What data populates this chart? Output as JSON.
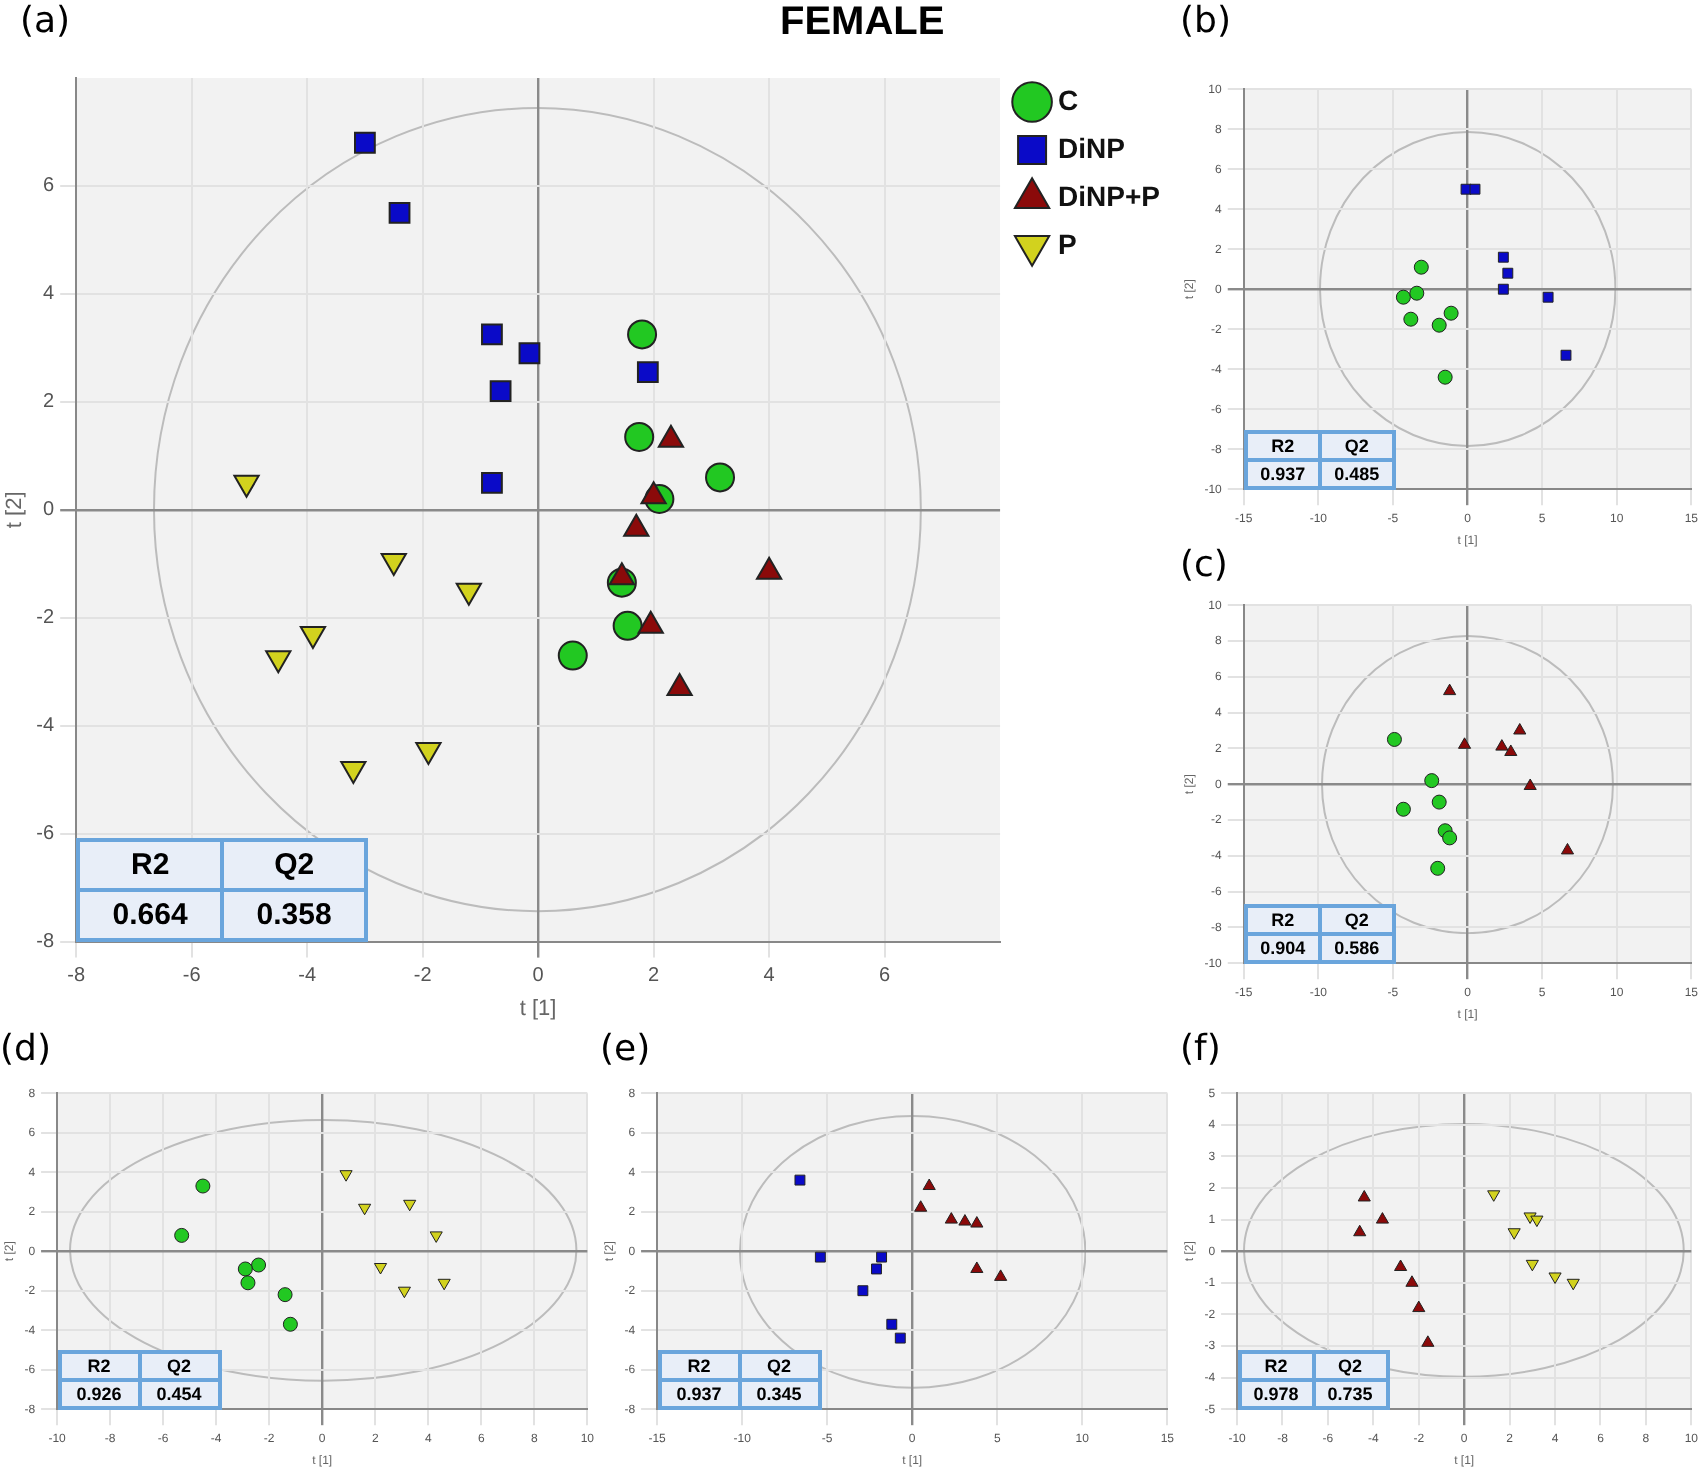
{
  "chart_data": [
    {
      "type": "scatter",
      "title": "(a)",
      "subtitle": "FEMALE",
      "xlabel": "t [1]",
      "ylabel": "t [2]",
      "xlim": [
        -8,
        8
      ],
      "ylim": [
        -8,
        8
      ],
      "xticks": [
        -8,
        -6,
        -4,
        -2,
        0,
        2,
        4,
        6
      ],
      "yticks": [
        -8,
        -6,
        -4,
        -2,
        0,
        2,
        4,
        6
      ],
      "grid": true,
      "legend": "top right",
      "annotations": [
        "R2",
        "Q2",
        "0.664",
        "0.358"
      ],
      "series": [
        {
          "name": "C",
          "color": "#22c822",
          "marker": "circle",
          "x": [
            1.8,
            1.75,
            3.15,
            2.1,
            1.45,
            1.55,
            0.6
          ],
          "values": [
            3.25,
            1.35,
            0.6,
            0.2,
            -1.35,
            -2.15,
            -2.7
          ]
        },
        {
          "name": "DiNP",
          "color": "#0a0ac8",
          "marker": "square",
          "x": [
            -3,
            -2.4,
            -0.8,
            -0.15,
            -0.65,
            1.9,
            -0.8
          ],
          "values": [
            6.8,
            5.5,
            3.25,
            2.9,
            2.2,
            2.55,
            0.5
          ]
        },
        {
          "name": "DiNP+P",
          "color": "#8b0a0a",
          "marker": "triangle",
          "x": [
            2.3,
            2,
            1.7,
            1.45,
            4,
            1.95,
            2.45
          ],
          "values": [
            1.3,
            0.25,
            -0.35,
            -1.25,
            -1.15,
            -2.15,
            -3.3
          ]
        },
        {
          "name": "P",
          "color": "#d2d21e",
          "marker": "triangle-down",
          "x": [
            -5.05,
            -2.5,
            -1.2,
            -3.9,
            -4.5,
            -1.9,
            -3.2
          ],
          "values": [
            0.5,
            -0.95,
            -1.5,
            -2.3,
            -2.75,
            -4.45,
            -4.8
          ]
        }
      ]
    },
    {
      "type": "scatter",
      "title": "(b)",
      "xlabel": "t [1]",
      "ylabel": "t [2]",
      "xlim": [
        -15,
        15
      ],
      "ylim": [
        -10,
        10
      ],
      "xticks": [
        -15,
        -10,
        -5,
        0,
        5,
        10,
        15
      ],
      "yticks": [
        -10,
        -8,
        -6,
        -4,
        -2,
        0,
        2,
        4,
        6,
        8,
        10
      ],
      "grid": true,
      "annotations": [
        "R2",
        "Q2",
        "0.937",
        "0.485"
      ],
      "series": [
        {
          "color": "#22c822",
          "marker": "circle",
          "x": [
            -3.1,
            -4.3,
            -3.4,
            -3.8,
            -1.1,
            -1.9,
            -1.5
          ],
          "values": [
            1.1,
            -0.4,
            -0.2,
            -1.5,
            -1.2,
            -1.8,
            -4.4
          ]
        },
        {
          "color": "#0a0ac8",
          "marker": "square",
          "x": [
            -0.1,
            0.5,
            2.4,
            2.7,
            2.4,
            5.4,
            6.6
          ],
          "values": [
            5,
            5,
            1.6,
            0.8,
            0,
            -0.4,
            -3.3
          ]
        }
      ]
    },
    {
      "type": "scatter",
      "title": "(c)",
      "xlabel": "t [1]",
      "ylabel": "t [2]",
      "xlim": [
        -15,
        15
      ],
      "ylim": [
        -10,
        10
      ],
      "xticks": [
        -15,
        -10,
        -5,
        0,
        5,
        10,
        15
      ],
      "yticks": [
        -10,
        -8,
        -6,
        -4,
        -2,
        0,
        2,
        4,
        6,
        8,
        10
      ],
      "grid": true,
      "annotations": [
        "R2",
        "Q2",
        "0.904",
        "0.586"
      ],
      "series": [
        {
          "color": "#22c822",
          "marker": "circle",
          "x": [
            -4.9,
            -2.4,
            -4.3,
            -1.9,
            -1.5,
            -1.2,
            -2
          ],
          "values": [
            2.5,
            0.2,
            -1.4,
            -1,
            -2.6,
            -3,
            -4.7
          ]
        },
        {
          "color": "#8b0a0a",
          "marker": "triangle",
          "x": [
            -1.2,
            -0.2,
            2.3,
            2.9,
            3.5,
            4.2,
            6.7
          ],
          "values": [
            5.2,
            2.2,
            2.1,
            1.8,
            3,
            -0.1,
            -3.7
          ]
        }
      ]
    },
    {
      "type": "scatter",
      "title": "(d)",
      "xlabel": "t [1]",
      "ylabel": "t [2]",
      "xlim": [
        -10,
        10
      ],
      "ylim": [
        -8,
        8
      ],
      "xticks": [
        -10,
        -8,
        -6,
        -4,
        -2,
        0,
        2,
        4,
        6,
        8,
        10
      ],
      "yticks": [
        -8,
        -6,
        -4,
        -2,
        0,
        2,
        4,
        6,
        8
      ],
      "grid": true,
      "annotations": [
        "R2",
        "Q2",
        "0.926",
        "0.454"
      ],
      "series": [
        {
          "color": "#22c822",
          "marker": "circle",
          "x": [
            -4.5,
            -5.3,
            -2.4,
            -2.9,
            -2.8,
            -1.4,
            -1.2
          ],
          "values": [
            3.3,
            0.8,
            -0.7,
            -0.9,
            -1.6,
            -2.2,
            -3.7
          ]
        },
        {
          "color": "#d2d21e",
          "marker": "triangle-down",
          "x": [
            0.9,
            1.6,
            3.3,
            4.3,
            2.2,
            3.1,
            4.6
          ],
          "values": [
            3.9,
            2.2,
            2.4,
            0.8,
            -0.8,
            -2,
            -1.6
          ]
        }
      ]
    },
    {
      "type": "scatter",
      "title": "(e)",
      "xlabel": "t [1]",
      "ylabel": "t [2]",
      "xlim": [
        -15,
        15
      ],
      "ylim": [
        -8,
        8
      ],
      "xticks": [
        -15,
        -10,
        -5,
        0,
        5,
        10,
        15
      ],
      "yticks": [
        -8,
        -6,
        -4,
        -2,
        0,
        2,
        4,
        6,
        8
      ],
      "grid": true,
      "annotations": [
        "R2",
        "Q2",
        "0.937",
        "0.345"
      ],
      "series": [
        {
          "color": "#0a0ac8",
          "marker": "square",
          "x": [
            -6.6,
            -5.4,
            -1.8,
            -2.1,
            -2.9,
            -1.2,
            -0.7
          ],
          "values": [
            3.6,
            -0.3,
            -0.3,
            -0.9,
            -2,
            -3.7,
            -4.4
          ]
        },
        {
          "color": "#8b0a0a",
          "marker": "triangle",
          "x": [
            1,
            0.5,
            2.3,
            3.1,
            3.8,
            3.8,
            5.2
          ],
          "values": [
            3.3,
            2.2,
            1.6,
            1.5,
            1.4,
            -0.9,
            -1.3
          ]
        }
      ]
    },
    {
      "type": "scatter",
      "title": "(f)",
      "xlabel": "t [1]",
      "ylabel": "t [2]",
      "xlim": [
        -10,
        10
      ],
      "ylim": [
        -5,
        5
      ],
      "xticks": [
        -10,
        -8,
        -6,
        -4,
        -2,
        0,
        2,
        4,
        6,
        8,
        10
      ],
      "yticks": [
        -5,
        -4,
        -3,
        -2,
        -1,
        0,
        1,
        2,
        3,
        4,
        5
      ],
      "grid": true,
      "annotations": [
        "R2",
        "Q2",
        "0.978",
        "0.735"
      ],
      "series": [
        {
          "color": "#8b0a0a",
          "marker": "triangle",
          "x": [
            -4.4,
            -3.6,
            -4.6,
            -2.8,
            -2.3,
            -2,
            -1.6
          ],
          "values": [
            1.7,
            1,
            0.6,
            -0.5,
            -1,
            -1.8,
            -2.9
          ]
        },
        {
          "color": "#d2d21e",
          "marker": "triangle-down",
          "x": [
            1.3,
            2.2,
            2.9,
            3.2,
            3,
            4,
            4.8
          ],
          "values": [
            1.8,
            0.6,
            1.1,
            1,
            -0.4,
            -0.8,
            -1
          ]
        }
      ]
    }
  ]
}
